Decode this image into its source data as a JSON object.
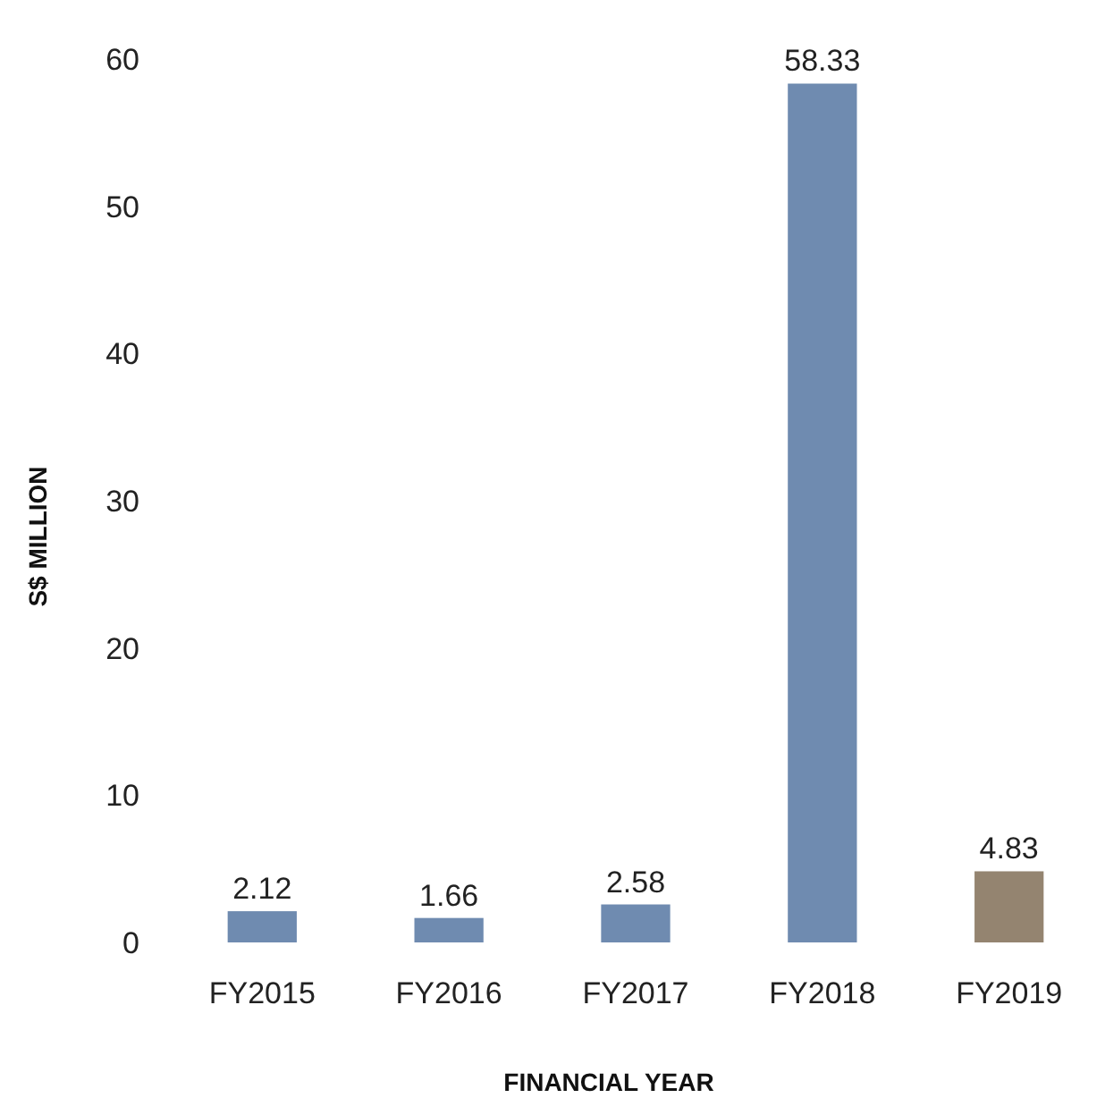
{
  "chart_data": {
    "type": "bar",
    "xlabel": "FINANCIAL YEAR",
    "ylabel": "S$ MILLION",
    "categories": [
      "FY2015",
      "FY2016",
      "FY2017",
      "FY2018",
      "FY2019"
    ],
    "values": [
      2.12,
      1.66,
      2.58,
      58.33,
      4.83
    ],
    "colors": [
      "#6f8bb0",
      "#6f8bb0",
      "#6f8bb0",
      "#6f8bb0",
      "#948470"
    ],
    "ylim": [
      0,
      60
    ],
    "yticks": [
      0,
      10,
      20,
      30,
      40,
      50,
      60
    ],
    "grid": false,
    "data_labels": true
  }
}
